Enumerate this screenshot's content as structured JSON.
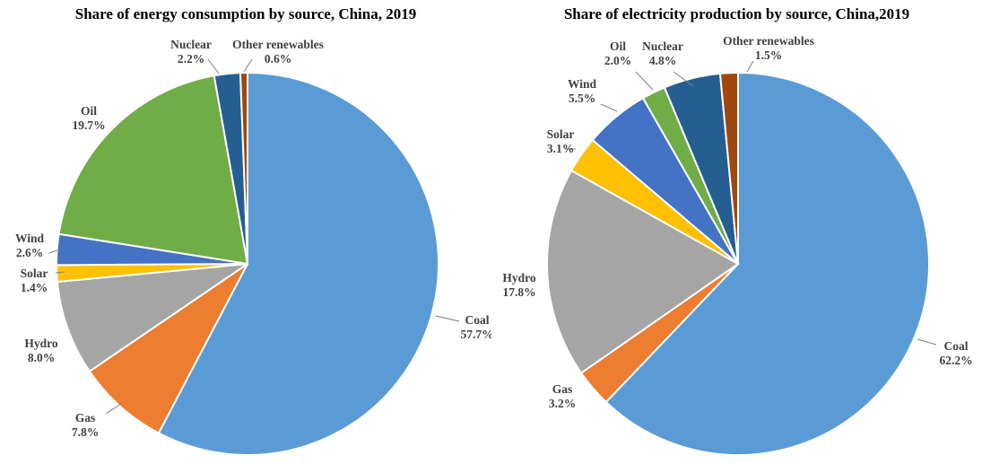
{
  "chart_data": [
    {
      "type": "pie",
      "title": "Share of energy consumption by source, China, 2019",
      "slices": [
        {
          "label": "Coal",
          "value_label": "57.7%",
          "value": 57.7,
          "color": "#5B9BD5"
        },
        {
          "label": "Gas",
          "value_label": "7.8%",
          "value": 7.8,
          "color": "#ED7D31"
        },
        {
          "label": "Hydro",
          "value_label": "8.0%",
          "value": 8.0,
          "color": "#A5A5A5"
        },
        {
          "label": "Solar",
          "value_label": "1.4%",
          "value": 1.4,
          "color": "#FFC000"
        },
        {
          "label": "Wind",
          "value_label": "2.6%",
          "value": 2.6,
          "color": "#4472C4"
        },
        {
          "label": "Oil",
          "value_label": "19.7%",
          "value": 19.7,
          "color": "#70AD47"
        },
        {
          "label": "Nuclear",
          "value_label": "2.2%",
          "value": 2.2,
          "color": "#255E91"
        },
        {
          "label": "Other renewables",
          "value_label": "0.6%",
          "value": 0.6,
          "color": "#9E480E"
        }
      ]
    },
    {
      "type": "pie",
      "title": "Share of electricity production by source, China,2019",
      "slices": [
        {
          "label": "Coal",
          "value_label": "62.2%",
          "value": 62.2,
          "color": "#5B9BD5"
        },
        {
          "label": "Gas",
          "value_label": "3.2%",
          "value": 3.2,
          "color": "#ED7D31"
        },
        {
          "label": "Hydro",
          "value_label": "17.8%",
          "value": 17.8,
          "color": "#A5A5A5"
        },
        {
          "label": "Solar",
          "value_label": "3.1%",
          "value": 3.1,
          "color": "#FFC000"
        },
        {
          "label": "Wind",
          "value_label": "5.5%",
          "value": 5.5,
          "color": "#4472C4"
        },
        {
          "label": "Oil",
          "value_label": "2.0%",
          "value": 2.0,
          "color": "#70AD47"
        },
        {
          "label": "Nuclear",
          "value_label": "4.8%",
          "value": 4.8,
          "color": "#255E91"
        },
        {
          "label": "Other renewables",
          "value_label": "1.5%",
          "value": 1.5,
          "color": "#9E480E"
        }
      ]
    }
  ]
}
